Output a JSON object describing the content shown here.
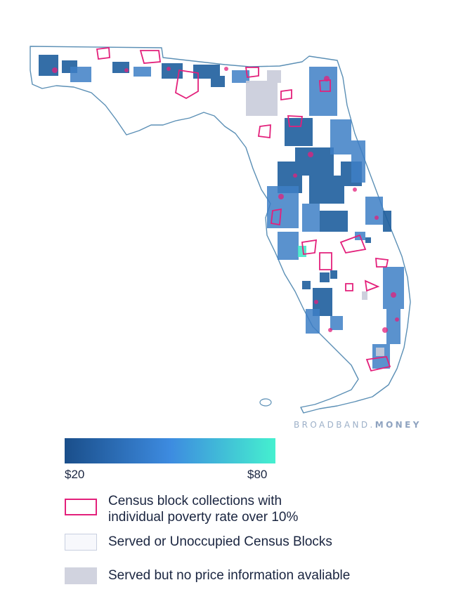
{
  "map": {
    "region": "Florida",
    "colors": {
      "outline": "#5b8fb5",
      "low": "#1a4e8a",
      "mid": "#3b82d0",
      "high": "#45f0cf",
      "poverty": "#e3207b",
      "no_price": "#c9ccda"
    }
  },
  "watermark": {
    "part1": "BROADBAND.",
    "part2": "MONEY"
  },
  "legend": {
    "scale_min": "$20",
    "scale_max": "$80",
    "colors": {
      "start": "#1a4e8a",
      "middle": "#3d8be0",
      "end": "#45f0cf"
    },
    "items": [
      {
        "label_line1": "Census block collections with",
        "label_line2": "individual poverty rate over 10%"
      },
      {
        "label": "Served or Unoccupied Census Blocks"
      },
      {
        "label": "Served but no price information avaliable"
      }
    ]
  }
}
